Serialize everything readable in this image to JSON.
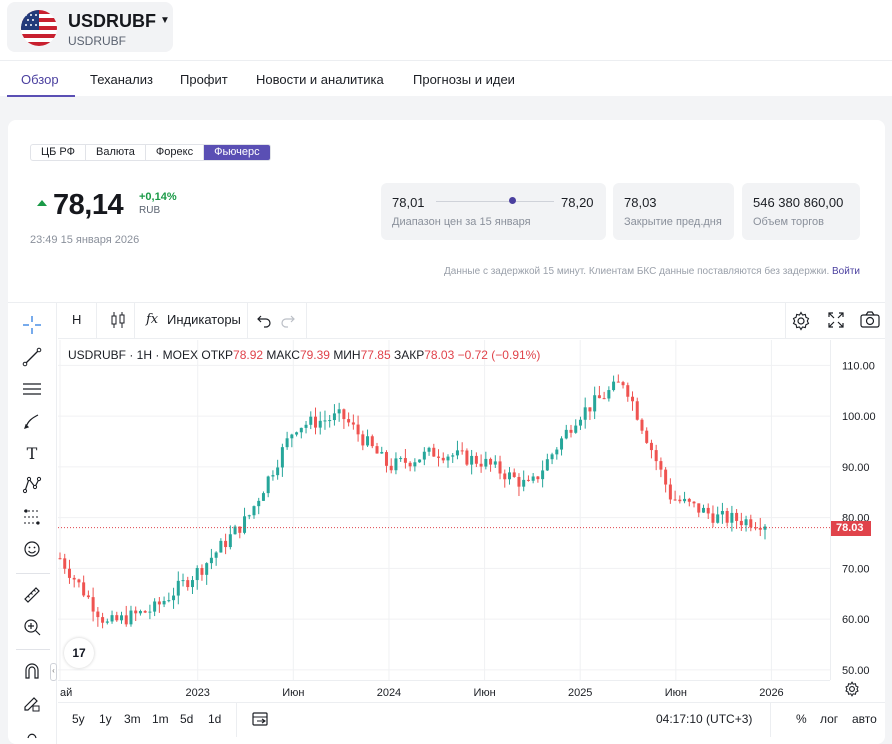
{
  "header": {
    "ticker": "USDRUBF",
    "ticker_sub": "USDRUBF",
    "flag_icon": "us-flag-icon"
  },
  "tabs": [
    "Обзор",
    "Теханализ",
    "Профит",
    "Новости и аналитика",
    "Прогнозы и идеи"
  ],
  "segments": [
    "ЦБ РФ",
    "Валюта",
    "Форекс",
    "Фьючерс"
  ],
  "quote": {
    "price": "78,14",
    "change": "+0,14%",
    "currency": "RUB",
    "timestamp": "23:49 15 января 2026",
    "range_low": "78,01",
    "range_high": "78,20",
    "range_position": 0.64,
    "range_label": "Диапазон цен за 15 января",
    "prev_close": "78,03",
    "prev_close_label": "Закрытие пред.дня",
    "volume": "546 380 860,00",
    "volume_label": "Объем торгов"
  },
  "delay_note": "Данные с задержкой 15 минут. Клиентам БКС данные поставляются без задержки.",
  "login_link": "Войти",
  "toolbar": {
    "interval": "H",
    "indicators": "Индикаторы"
  },
  "legend": {
    "symbol": "USDRUBF · 1H · MOEX",
    "open_label": "ОТКР",
    "open": "78.92",
    "high_label": "МАКС",
    "high": "79.39",
    "low_label": "МИН",
    "low": "77.85",
    "close_label": "ЗАКР",
    "close": "78.03",
    "change": "−0.72 (−0.91%)"
  },
  "chart_data": {
    "type": "line",
    "style": "candlestick",
    "y_ticks": [
      "110.00",
      "100.00",
      "90.00",
      "80.00",
      "70.00",
      "60.00",
      "50.00"
    ],
    "x_ticks": [
      "ай",
      "2023",
      "Июн",
      "2024",
      "Июн",
      "2025",
      "Июн",
      "2026"
    ],
    "ylim": [
      48,
      115
    ],
    "last_price": "78.03",
    "x": [
      0,
      3,
      6,
      9,
      12,
      15,
      18,
      21,
      24,
      27,
      30,
      33,
      36,
      39,
      42,
      45
    ],
    "values": [
      72,
      59,
      62,
      70,
      80,
      98,
      100,
      90,
      93,
      91,
      86,
      100,
      107,
      84,
      80,
      79
    ],
    "colors": {
      "up": "#26a69a",
      "down": "#ef5350"
    }
  },
  "periods": [
    "5y",
    "1y",
    "3m",
    "1m",
    "5d",
    "1d"
  ],
  "clock": "04:17:10 (UTC+3)",
  "scale_options": [
    "%",
    "лог",
    "авто"
  ],
  "tv_logo": "17"
}
